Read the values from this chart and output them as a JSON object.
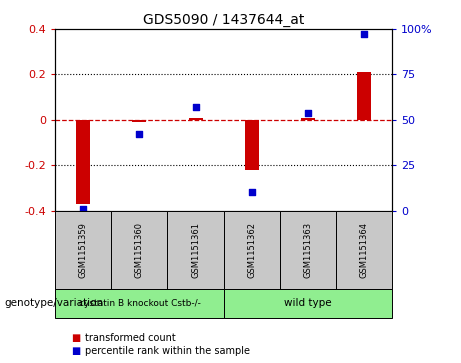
{
  "title": "GDS5090 / 1437644_at",
  "samples": [
    "GSM1151359",
    "GSM1151360",
    "GSM1151361",
    "GSM1151362",
    "GSM1151363",
    "GSM1151364"
  ],
  "transformed_count": [
    -0.37,
    -0.01,
    0.01,
    -0.22,
    0.01,
    0.21
  ],
  "percentile_rank": [
    1,
    42,
    57,
    10,
    54,
    97
  ],
  "group1_label": "cystatin B knockout Cstb-/-",
  "group2_label": "wild type",
  "group1_samples": 3,
  "group2_samples": 3,
  "group_color": "#90EE90",
  "sample_box_color": "#C8C8C8",
  "ylim_left": [
    -0.4,
    0.4
  ],
  "ylim_right": [
    0,
    100
  ],
  "yticks_left": [
    -0.4,
    -0.2,
    0.0,
    0.2,
    0.4
  ],
  "yticks_right": [
    0,
    25,
    50,
    75,
    100
  ],
  "bar_color": "#CC0000",
  "dot_color": "#0000CC",
  "hline_color": "#CC0000",
  "background_color": "#ffffff",
  "group_label": "genotype/variation",
  "legend_bar_label": "transformed count",
  "legend_dot_label": "percentile rank within the sample",
  "left_tick_color": "#CC0000",
  "right_tick_color": "#0000CC",
  "bar_width": 0.25
}
